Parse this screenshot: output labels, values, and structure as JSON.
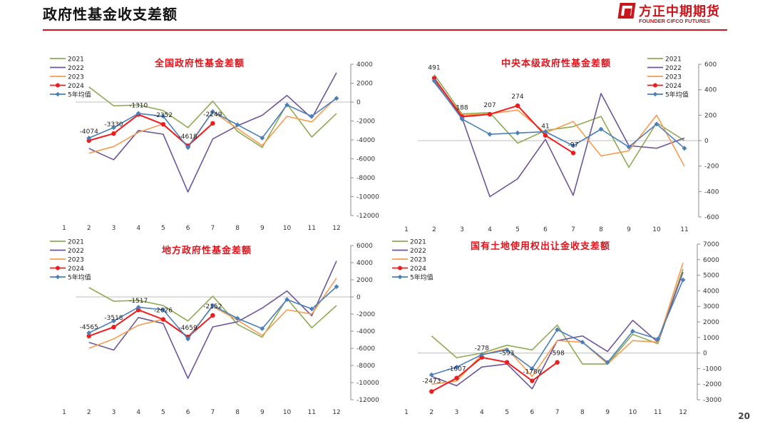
{
  "header": {
    "title": "政府性基金收支差额",
    "logo_cn": "方正中期期货",
    "logo_en": "FOUNDER CIFCO FUTURES",
    "page_number": "20"
  },
  "colors": {
    "2021": "#8faa53",
    "2022": "#6e5697",
    "2023": "#f79b4f",
    "2024": "#ee1c1c",
    "avg": "#4a7fba",
    "title": "#e0141c",
    "rule": "#c8161d"
  },
  "chart_data": [
    {
      "type": "line",
      "title": "全国政府性基金差额",
      "x_ticks": [
        "1",
        "2",
        "3",
        "4",
        "5",
        "6",
        "7",
        "8",
        "9",
        "10",
        "11",
        "12"
      ],
      "y_ticks": [
        "4000",
        "2000",
        "0",
        "-2000",
        "-4000",
        "-6000",
        "-8000",
        "-10000",
        "-12000"
      ],
      "ylim": [
        -12000,
        4000
      ],
      "y_axis": "right",
      "legend_position": "top-left",
      "series": [
        {
          "name": "2021",
          "key": "2021",
          "x": [
            2,
            3,
            4,
            5,
            6,
            7,
            8,
            9,
            10,
            11,
            12
          ],
          "values": [
            1600,
            -400,
            -300,
            -900,
            -2700,
            100,
            -3100,
            -4800,
            -200,
            -3700,
            -1200
          ]
        },
        {
          "name": "2022",
          "key": "2022",
          "x": [
            2,
            3,
            4,
            5,
            6,
            7,
            8,
            9,
            10,
            11,
            12
          ],
          "values": [
            -4900,
            -6100,
            -3000,
            -3400,
            -9500,
            -3900,
            -2500,
            -1400,
            700,
            -1700,
            3100
          ]
        },
        {
          "name": "2023",
          "key": "2023",
          "x": [
            2,
            3,
            4,
            5,
            6,
            7,
            8,
            9,
            10,
            11,
            12
          ],
          "values": [
            -5400,
            -4700,
            -3200,
            -2300,
            -4700,
            -1000,
            -2800,
            -4600,
            -1500,
            -2100,
            500
          ]
        },
        {
          "name": "2024",
          "key": "2024",
          "x": [
            2,
            3,
            4,
            5,
            6,
            7
          ],
          "values": [
            -4074,
            -3330,
            -1310,
            -2352,
            -4618,
            -2249
          ],
          "markers": "circle"
        },
        {
          "name": "5年均值",
          "key": "avg",
          "x": [
            2,
            3,
            4,
            5,
            6,
            7,
            8,
            9,
            10,
            11,
            12
          ],
          "values": [
            -3800,
            -2700,
            -1200,
            -1500,
            -4800,
            -1000,
            -2400,
            -3800,
            -300,
            -1500,
            400
          ],
          "markers": "diamond"
        }
      ],
      "annotations": [
        "-4074",
        "-3330",
        "-1310",
        "-2352",
        "-4618",
        "-2249"
      ]
    },
    {
      "type": "line",
      "title": "中央本级政府性基金差额",
      "x_ticks": [
        "1",
        "2",
        "3",
        "4",
        "5",
        "6",
        "7",
        "8",
        "9",
        "10",
        "11"
      ],
      "y_ticks": [
        "600",
        "400",
        "200",
        "0",
        "-200",
        "-400",
        "-600"
      ],
      "ylim": [
        -600,
        600
      ],
      "y_axis": "right",
      "legend_position": "top-right",
      "series": [
        {
          "name": "2021",
          "key": "2021",
          "x": [
            2,
            3,
            4,
            5,
            6,
            7,
            8,
            9,
            10,
            11
          ],
          "values": [
            520,
            210,
            220,
            -20,
            80,
            110,
            190,
            -210,
            140,
            0
          ]
        },
        {
          "name": "2022",
          "key": "2022",
          "x": [
            2,
            3,
            4,
            5,
            6,
            7,
            8,
            9,
            10,
            11
          ],
          "values": [
            460,
            180,
            -440,
            -300,
            10,
            -430,
            370,
            -40,
            -60,
            20
          ]
        },
        {
          "name": "2023",
          "key": "2023",
          "x": [
            2,
            3,
            4,
            5,
            6,
            7,
            8,
            9,
            10,
            11
          ],
          "values": [
            480,
            200,
            210,
            240,
            60,
            150,
            -120,
            -80,
            200,
            -200
          ]
        },
        {
          "name": "2024",
          "key": "2024",
          "x": [
            2,
            3,
            4,
            5,
            6,
            7
          ],
          "values": [
            491,
            188,
            207,
            274,
            41,
            -97
          ],
          "markers": "circle"
        },
        {
          "name": "5年均值",
          "key": "avg",
          "x": [
            2,
            3,
            4,
            5,
            6,
            7,
            8,
            9,
            10,
            11
          ],
          "values": [
            470,
            170,
            50,
            60,
            70,
            -40,
            90,
            -50,
            130,
            -60
          ],
          "markers": "diamond"
        }
      ],
      "annotations": [
        "491",
        "188",
        "207",
        "274",
        "41",
        "-97"
      ]
    },
    {
      "type": "line",
      "title": "地方政府性基金差额",
      "x_ticks": [
        "1",
        "2",
        "3",
        "4",
        "5",
        "6",
        "7",
        "8",
        "9",
        "10",
        "11",
        "12"
      ],
      "y_ticks": [
        "6000",
        "4000",
        "2000",
        "0",
        "-2000",
        "-4000",
        "-6000",
        "-8000",
        "-10000",
        "-12000"
      ],
      "ylim": [
        -12000,
        6000
      ],
      "y_axis": "right",
      "legend_position": "top-left",
      "series": [
        {
          "name": "2021",
          "key": "2021",
          "x": [
            2,
            3,
            4,
            5,
            6,
            7,
            8,
            9,
            10,
            11,
            12
          ],
          "values": [
            1100,
            -500,
            -400,
            -1000,
            -2800,
            100,
            -3200,
            -4700,
            -200,
            -3600,
            -1000
          ]
        },
        {
          "name": "2022",
          "key": "2022",
          "x": [
            2,
            3,
            4,
            5,
            6,
            7,
            8,
            9,
            10,
            11,
            12
          ],
          "values": [
            -5300,
            -6200,
            -2400,
            -3100,
            -9500,
            -3500,
            -2900,
            -1300,
            700,
            -2200,
            4200
          ]
        },
        {
          "name": "2023",
          "key": "2023",
          "x": [
            2,
            3,
            4,
            5,
            6,
            7,
            8,
            9,
            10,
            11,
            12
          ],
          "values": [
            -6000,
            -4900,
            -3300,
            -2600,
            -4700,
            -1100,
            -2700,
            -4500,
            -1500,
            -2000,
            2200
          ]
        },
        {
          "name": "2024",
          "key": "2024",
          "x": [
            2,
            3,
            4,
            5,
            6,
            7
          ],
          "values": [
            -4565,
            -3518,
            -1517,
            -2626,
            -4659,
            -2152
          ],
          "markers": "circle"
        },
        {
          "name": "5年均值",
          "key": "avg",
          "x": [
            2,
            3,
            4,
            5,
            6,
            7,
            8,
            9,
            10,
            11,
            12
          ],
          "values": [
            -4200,
            -2800,
            -1200,
            -1500,
            -4900,
            -1000,
            -2500,
            -3700,
            -300,
            -1400,
            1200
          ],
          "markers": "diamond"
        }
      ],
      "annotations": [
        "-4565",
        "-3518",
        "-1517",
        "-2626",
        "-4659",
        "-2152"
      ]
    },
    {
      "type": "line",
      "title": "国有土地使用权出让金收支差额",
      "x_ticks": [
        "1",
        "2",
        "3",
        "4",
        "5",
        "6",
        "7",
        "8",
        "9",
        "10",
        "11",
        "12"
      ],
      "y_ticks": [
        "7000",
        "6000",
        "5000",
        "4000",
        "3000",
        "2000",
        "1000",
        "0",
        "-1000",
        "-2000",
        "-3000"
      ],
      "ylim": [
        -3000,
        7000
      ],
      "y_axis": "right",
      "legend_position": "top-left",
      "series": [
        {
          "name": "2021",
          "key": "2021",
          "x": [
            2,
            3,
            4,
            5,
            6,
            7,
            8,
            9,
            10,
            11,
            12
          ],
          "values": [
            1100,
            -300,
            0,
            500,
            200,
            1800,
            -700,
            -700,
            1200,
            600,
            5400
          ]
        },
        {
          "name": "2022",
          "key": "2022",
          "x": [
            2,
            3,
            4,
            5,
            6,
            7,
            8,
            9,
            10,
            11,
            12
          ],
          "values": [
            -1500,
            -2100,
            -900,
            -700,
            -2300,
            800,
            1100,
            100,
            2100,
            700,
            5200
          ]
        },
        {
          "name": "2023",
          "key": "2023",
          "x": [
            2,
            3,
            4,
            5,
            6,
            7,
            8,
            9,
            10,
            11,
            12
          ],
          "values": [
            -2000,
            -1800,
            -100,
            300,
            -1500,
            800,
            700,
            -700,
            800,
            700,
            5800
          ]
        },
        {
          "name": "2024",
          "key": "2024",
          "x": [
            2,
            3,
            4,
            5,
            6,
            7
          ],
          "values": [
            -2473,
            -1607,
            -278,
            -593,
            -1786,
            -598
          ],
          "markers": "circle"
        },
        {
          "name": "5年均值",
          "key": "avg",
          "x": [
            2,
            3,
            4,
            5,
            6,
            7,
            8,
            9,
            10,
            11,
            12
          ],
          "values": [
            -1400,
            -900,
            -100,
            200,
            -1000,
            1500,
            700,
            -600,
            1400,
            900,
            4700
          ],
          "markers": "diamond"
        }
      ],
      "annotations": [
        "-2473",
        "-1607",
        "-278",
        "-593",
        "-1786",
        "-598"
      ]
    }
  ]
}
